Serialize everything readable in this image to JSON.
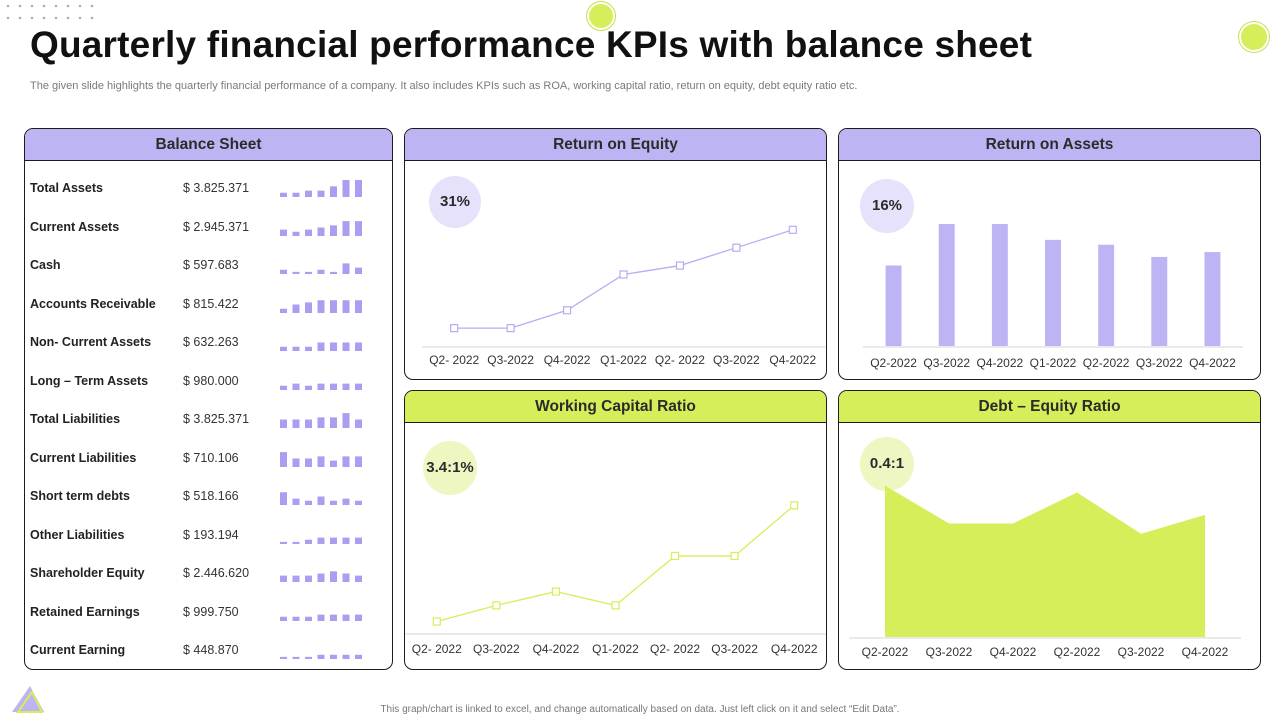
{
  "page": {
    "title": "Quarterly financial performance KPIs with balance sheet",
    "subtitle": "The given slide highlights the quarterly financial performance of a company. It also includes KPIs such as ROA, working capital ratio, return on equity, debt equity ratio etc.",
    "footer": "This graph/chart is linked to excel, and change automatically based on data. Just left click on it and select “Edit Data”.",
    "colors": {
      "purple": "#bdb5f3",
      "purple_dark": "#a99ef0",
      "green": "#d5ee5a",
      "line_purple": "#b5adf0",
      "line_green": "#d5ee5a"
    }
  },
  "balance_sheet": {
    "title": "Balance Sheet",
    "rows": [
      {
        "label": "Total Assets",
        "value": "$ 3.825.371",
        "trend": [
          2,
          2,
          3,
          3,
          5,
          8,
          8
        ]
      },
      {
        "label": "Current Assets",
        "value": "$ 2.945.371",
        "trend": [
          3,
          2,
          3,
          4,
          5,
          7,
          7
        ]
      },
      {
        "label": "Cash",
        "value": "$ 597.683",
        "trend": [
          2,
          1,
          1,
          2,
          1,
          5,
          3
        ]
      },
      {
        "label": "Accounts Receivable",
        "value": "$ 815.422",
        "trend": [
          2,
          4,
          5,
          6,
          6,
          6,
          6
        ]
      },
      {
        "label": "Non- Current Assets",
        "value": "$ 632.263",
        "trend": [
          2,
          2,
          2,
          4,
          4,
          4,
          4
        ]
      },
      {
        "label": "Long – Term Assets",
        "value": "$ 980.000",
        "trend": [
          2,
          3,
          2,
          3,
          3,
          3,
          3
        ]
      },
      {
        "label": "Total Liabilities",
        "value": "$ 3.825.371",
        "trend": [
          4,
          4,
          4,
          5,
          5,
          7,
          4
        ]
      },
      {
        "label": "Current Liabilities",
        "value": "$ 710.106",
        "trend": [
          7,
          4,
          4,
          5,
          3,
          5,
          5
        ]
      },
      {
        "label": "Short term debts",
        "value": "$ 518.166",
        "trend": [
          6,
          3,
          2,
          4,
          2,
          3,
          2
        ]
      },
      {
        "label": "Other Liabilities",
        "value": "$ 193.194",
        "trend": [
          1,
          1,
          2,
          3,
          3,
          3,
          3
        ]
      },
      {
        "label": "Shareholder Equity",
        "value": "$ 2.446.620",
        "trend": [
          3,
          3,
          3,
          4,
          5,
          4,
          3
        ]
      },
      {
        "label": "Retained Earnings",
        "value": "$ 999.750",
        "trend": [
          2,
          2,
          2,
          3,
          3,
          3,
          3
        ]
      },
      {
        "label": "Current Earning",
        "value": "$ 448.870",
        "trend": [
          1,
          1,
          1,
          2,
          2,
          2,
          2
        ]
      }
    ]
  },
  "roe": {
    "title": "Return on Equity",
    "badge": "31%"
  },
  "roa": {
    "title": "Return on Assets",
    "badge": "16%"
  },
  "wcr": {
    "title": "Working Capital Ratio",
    "badge": "3.4:1%"
  },
  "der": {
    "title": "Debt – Equity Ratio",
    "badge": "0.4:1"
  },
  "chart_data": [
    {
      "id": "roe",
      "type": "line",
      "title": "Return on Equity",
      "categories": [
        "Q2- 2022",
        "Q3-2022",
        "Q4-2022",
        "Q1-2022",
        "Q2- 2022",
        "Q3-2022",
        "Q4-2022"
      ],
      "values": [
        1.0,
        1.0,
        2.0,
        4.0,
        4.5,
        5.5,
        6.5
      ],
      "ylim": [
        0,
        8
      ],
      "color": "#b5adf0",
      "grid": false
    },
    {
      "id": "roa",
      "type": "bar",
      "title": "Return on Assets",
      "categories": [
        "Q2-2022",
        "Q3-2022",
        "Q4-2022",
        "Q1-2022",
        "Q2-2022",
        "Q3-2022",
        "Q4-2022"
      ],
      "values": [
        66,
        100,
        100,
        87,
        83,
        73,
        77
      ],
      "ylim": [
        0,
        100
      ],
      "color": "#bdb5f3",
      "grid": false
    },
    {
      "id": "wcr",
      "type": "line",
      "title": "Working Capital Ratio",
      "categories": [
        "Q2- 2022",
        "Q3-2022",
        "Q4-2022",
        "Q1-2022",
        "Q2- 2022",
        "Q3-2022",
        "Q4-2022"
      ],
      "values": [
        1.0,
        2.4,
        3.6,
        2.4,
        6.7,
        6.7,
        11.1
      ],
      "ylim": [
        0,
        12
      ],
      "color": "#d5ee5a",
      "grid": false
    },
    {
      "id": "der",
      "type": "area",
      "title": "Debt – Equity Ratio",
      "categories": [
        "Q2-2022",
        "Q3-2022",
        "Q4-2022",
        "Q2-2022",
        "Q3-2022",
        "Q4-2022"
      ],
      "values": [
        8.8,
        6.6,
        6.6,
        8.4,
        6.0,
        7.1
      ],
      "ylim": [
        0,
        10
      ],
      "color": "#d5ee5a",
      "grid": false
    }
  ]
}
